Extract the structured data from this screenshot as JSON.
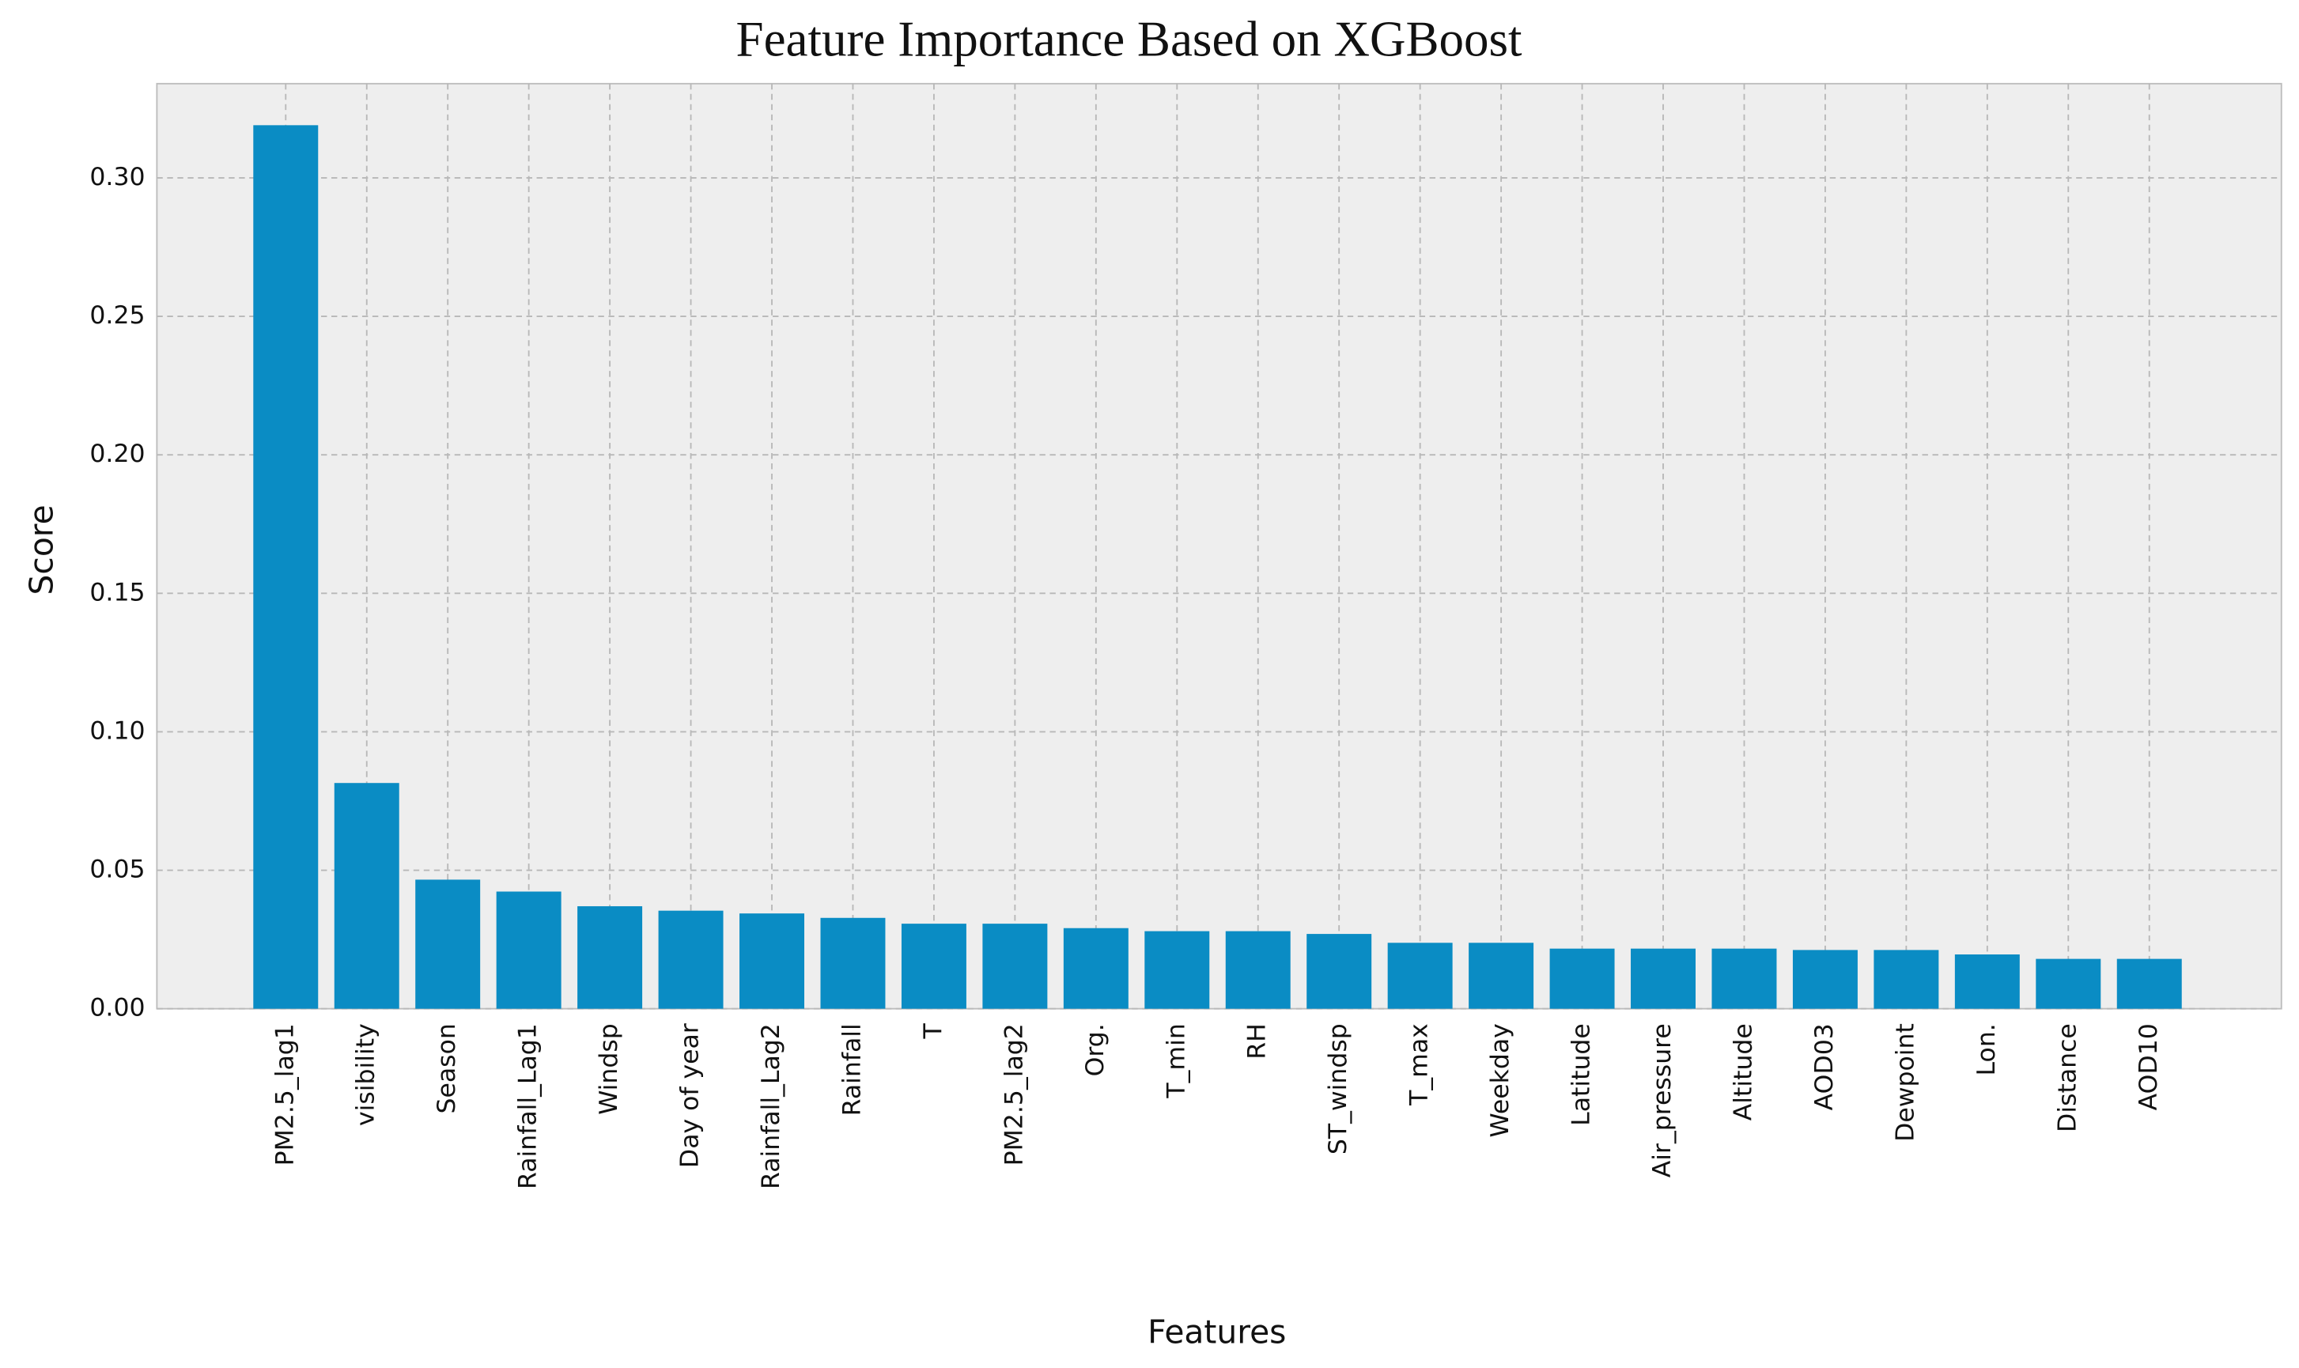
{
  "chart_data": {
    "type": "bar",
    "title": "Feature Importance Based on XGBoost",
    "x_label": "Features",
    "y_label": "Score",
    "categories": [
      "PM2.5_lag1",
      "visibility",
      "Season",
      "Rainfall_Lag1",
      "Windsp",
      "Day of year",
      "Rainfall_Lag2",
      "Rainfall",
      "T",
      "PM2.5_lag2",
      "Org.",
      "T_min",
      "RH",
      "ST_windsp",
      "T_max",
      "Weekday",
      "Latitude",
      "Air_pressure",
      "Altitude",
      "AOD03",
      "Dewpoint",
      "Lon.",
      "Distance",
      "AOD10"
    ],
    "values": [
      0.319,
      0.0815,
      0.0466,
      0.0423,
      0.037,
      0.0354,
      0.0344,
      0.0328,
      0.0307,
      0.0307,
      0.0291,
      0.028,
      0.028,
      0.027,
      0.0238,
      0.0238,
      0.0217,
      0.0217,
      0.0217,
      0.0212,
      0.0212,
      0.0196,
      0.018,
      0.018
    ],
    "color": "#0a8cc4",
    "ylim": [
      0,
      0.334
    ],
    "yticks": [
      {
        "value": 0,
        "label": "0.00"
      },
      {
        "value": 0.05,
        "label": "0.05"
      },
      {
        "value": 0.1,
        "label": "0.10"
      },
      {
        "value": 0.15,
        "label": "0.15"
      },
      {
        "value": 0.2,
        "label": "0.20"
      },
      {
        "value": 0.25,
        "label": "0.25"
      },
      {
        "value": 0.3,
        "label": "0.30"
      }
    ],
    "grid": true
  }
}
